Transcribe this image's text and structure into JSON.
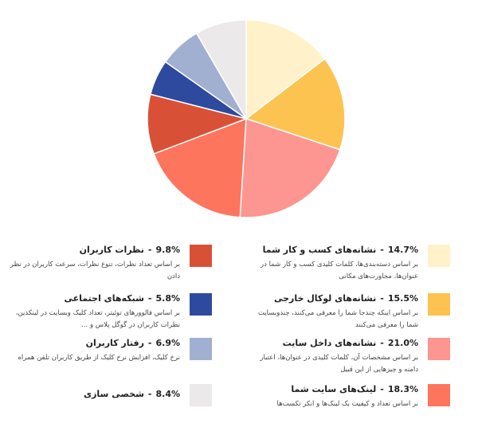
{
  "chart_data": {
    "type": "pie",
    "slices": [
      {
        "label": "نشانه‌های کسب و کار شما",
        "value": 14.7,
        "display": "14.7%",
        "color": "#fff1c9",
        "desc": "بر اساس دسته‌بندی‌ها، کلمات کلیدی کسب و کار شما در عنوان‌ها، مجاورت‌های مکانی"
      },
      {
        "label": "نشانه‌های لوکال خارجی",
        "value": 15.5,
        "display": "15.5%",
        "color": "#fdc350",
        "desc": "بر اساس اینکه چندجا شما را معرفی می‌کنند، چندوبسایت شما را معرفی می‌کنند"
      },
      {
        "label": "نشانه‌های داخل سایت",
        "value": 21.0,
        "display": "21.0%",
        "color": "#fd9590",
        "desc": "بر اساس مشخصات آن، کلمات کلیدی در عنوان‌ها، اعتبار دامنه و چیزهایی از این قبیل"
      },
      {
        "label": "لینک‌های سایت شما",
        "value": 18.3,
        "display": "18.3%",
        "color": "#fd755d",
        "desc": "بر اساس تعداد و کیفیت بک لینک‌ها و انکر تکست‌ها"
      },
      {
        "label": "نظرات کاربران",
        "value": 9.8,
        "display": "9.8%",
        "color": "#d85136",
        "desc": "بر اساس تعداد نظرات، تنوع نظرات، سرعت کاربران در نظر دادن"
      },
      {
        "label": "شبکه‌های اجتماعی",
        "value": 5.8,
        "display": "5.8%",
        "color": "#2d4a9f",
        "desc": "بر اساس فالوورهای توئیتر، تعداد کلیک وبسایت در لینکدین، نظرات کاربران در گوگل پلاس و ..."
      },
      {
        "label": "رفتار کاربران",
        "value": 6.9,
        "display": "6.9%",
        "color": "#a1b0d1",
        "desc": "نرخ کلیک، افزایش نرخ کلیک از طریق کاربران تلفن همراه"
      },
      {
        "label": "شخصی سازی",
        "value": 8.4,
        "display": "8.4%",
        "color": "#ebe9ea",
        "desc": ""
      }
    ]
  }
}
